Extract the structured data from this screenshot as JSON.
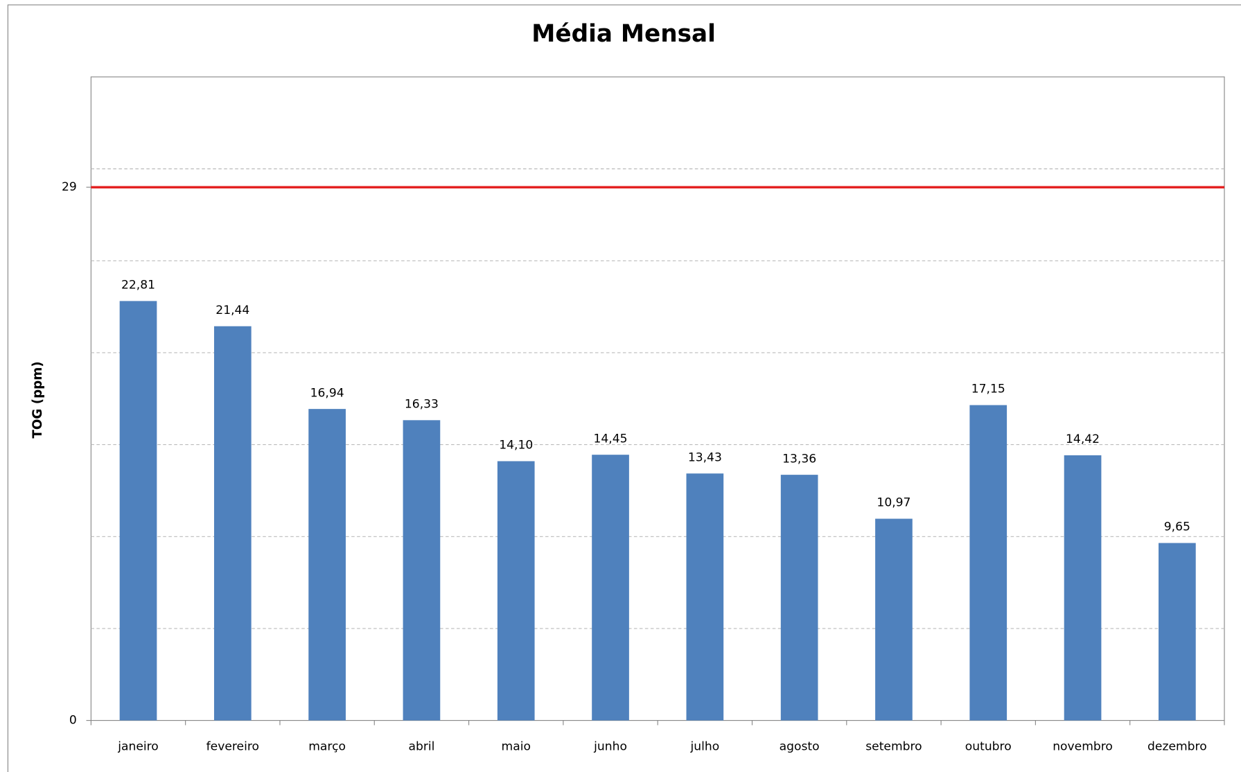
{
  "chart_data": {
    "type": "bar",
    "title": "Média Mensal",
    "y_label": "TOG (ppm)",
    "categories": [
      "janeiro",
      "fevereiro",
      "março",
      "abril",
      "maio",
      "junho",
      "julho",
      "agosto",
      "setembro",
      "outubro",
      "novembro",
      "dezembro"
    ],
    "values": [
      22.81,
      21.44,
      16.94,
      16.33,
      14.1,
      14.45,
      13.43,
      13.36,
      10.97,
      17.15,
      14.42,
      9.65
    ],
    "value_labels": [
      "22,81",
      "21,44",
      "16,94",
      "16,33",
      "14,10",
      "14,45",
      "13,43",
      "13,36",
      "10,97",
      "17,15",
      "14,42",
      "9,65"
    ],
    "color": "#4f81bd",
    "ylim": [
      0,
      35
    ],
    "yticks": [
      0,
      29
    ],
    "gridlines": [
      5,
      10,
      15,
      20,
      25,
      30
    ],
    "grid": true,
    "reference_line": {
      "value": 29,
      "color": "#e31c1c"
    }
  }
}
